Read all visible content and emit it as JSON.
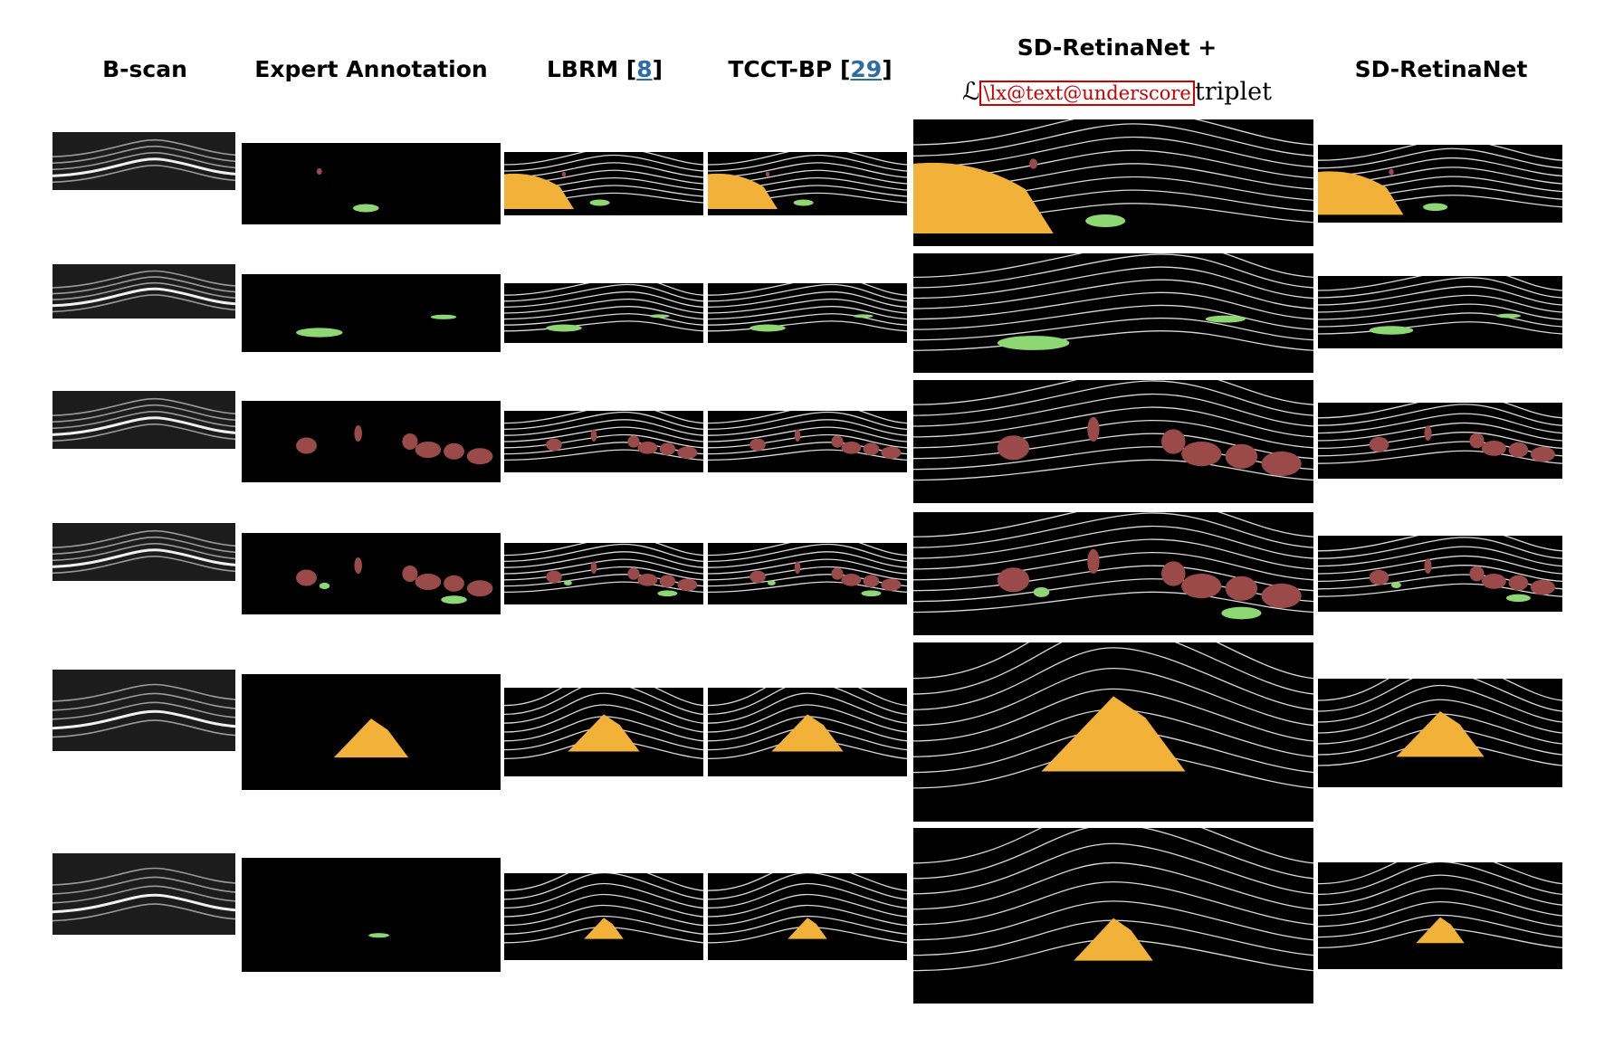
{
  "headers": {
    "bscan": "B-scan",
    "expert": "Expert Annotation",
    "lbrm_name": "LBRM [",
    "lbrm_ref": "8",
    "lbrm_close": "]",
    "tcct_name": "TCCT-BP [",
    "tcct_ref": "29",
    "tcct_close": "]",
    "sdr_plus_line1": "SD-RetinaNet +",
    "sdr_plus_math": "ℒ",
    "sdr_plus_error": "\\lx@text@underscore",
    "sdr_plus_sub": "triplet",
    "sdr": "SD-RetinaNet"
  },
  "rows": [
    {
      "fluid": "mixed"
    },
    {
      "fluid": "green"
    },
    {
      "fluid": "red"
    },
    {
      "fluid": "red-green"
    },
    {
      "fluid": "orange"
    },
    {
      "fluid": "orange-small"
    }
  ],
  "colors": {
    "background": "#ffffff",
    "panel": "#000000",
    "layer_lines": "#d9d9d9",
    "fluid_orange": "#f2b23a",
    "fluid_green": "#8ed873",
    "fluid_red": "#9b4a4a",
    "ref_link": "#2e6da4",
    "error_box": "#cc0000"
  }
}
